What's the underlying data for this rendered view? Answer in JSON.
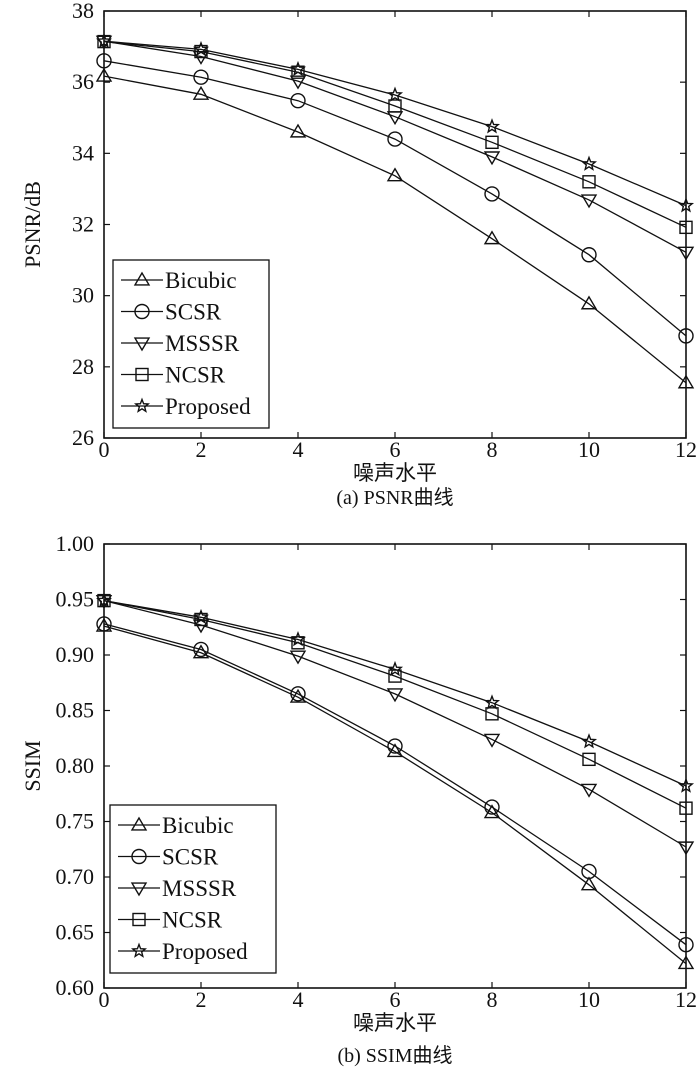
{
  "chart_data": [
    {
      "type": "line",
      "caption": "(a) PSNR曲线",
      "xlabel": "噪声水平",
      "ylabel": "PSNR/dB",
      "x": [
        0,
        2,
        4,
        6,
        8,
        10,
        12
      ],
      "xlim": [
        0,
        12
      ],
      "ylim": [
        26,
        38
      ],
      "xticks": [
        "0",
        "2",
        "4",
        "6",
        "8",
        "10",
        "12"
      ],
      "yticks": [
        "26",
        "28",
        "30",
        "32",
        "34",
        "36",
        "38"
      ],
      "grid": false,
      "legend_position": "bottom-left",
      "series": [
        {
          "name": "Bicubic",
          "marker": "triangle-up",
          "values": [
            36.17,
            35.66,
            34.6,
            33.37,
            31.6,
            29.77,
            27.55
          ]
        },
        {
          "name": "SCSR",
          "marker": "circle",
          "values": [
            36.6,
            36.14,
            35.48,
            34.4,
            32.86,
            31.15,
            28.87
          ]
        },
        {
          "name": "MSSSR",
          "marker": "triangle-down",
          "values": [
            37.15,
            36.72,
            36.03,
            35.03,
            33.9,
            32.69,
            31.22
          ]
        },
        {
          "name": "NCSR",
          "marker": "square",
          "values": [
            37.14,
            36.86,
            36.28,
            35.33,
            34.31,
            33.2,
            31.92
          ]
        },
        {
          "name": "Proposed",
          "marker": "star",
          "values": [
            37.15,
            36.92,
            36.36,
            35.64,
            34.75,
            33.7,
            32.53
          ]
        }
      ]
    },
    {
      "type": "line",
      "caption": "(b) SSIM曲线",
      "xlabel": "噪声水平",
      "ylabel": "SSIM",
      "x": [
        0,
        2,
        4,
        6,
        8,
        10,
        12
      ],
      "xlim": [
        0,
        12
      ],
      "ylim": [
        0.6,
        1.0
      ],
      "xticks": [
        "0",
        "2",
        "4",
        "6",
        "8",
        "10",
        "12"
      ],
      "yticks": [
        "0.60",
        "0.65",
        "0.70",
        "0.75",
        "0.80",
        "0.85",
        "0.90",
        "0.95",
        "1.00"
      ],
      "grid": false,
      "legend_position": "bottom-left",
      "series": [
        {
          "name": "Bicubic",
          "marker": "triangle-up",
          "values": [
            0.926,
            0.902,
            0.862,
            0.813,
            0.758,
            0.693,
            0.622
          ]
        },
        {
          "name": "SCSR",
          "marker": "circle",
          "values": [
            0.928,
            0.905,
            0.865,
            0.818,
            0.763,
            0.705,
            0.639
          ]
        },
        {
          "name": "MSSSR",
          "marker": "triangle-down",
          "values": [
            0.949,
            0.927,
            0.899,
            0.865,
            0.824,
            0.779,
            0.727
          ]
        },
        {
          "name": "NCSR",
          "marker": "square",
          "values": [
            0.949,
            0.932,
            0.911,
            0.881,
            0.847,
            0.806,
            0.762
          ]
        },
        {
          "name": "Proposed",
          "marker": "star",
          "values": [
            0.949,
            0.934,
            0.914,
            0.887,
            0.857,
            0.822,
            0.782
          ]
        }
      ]
    }
  ]
}
